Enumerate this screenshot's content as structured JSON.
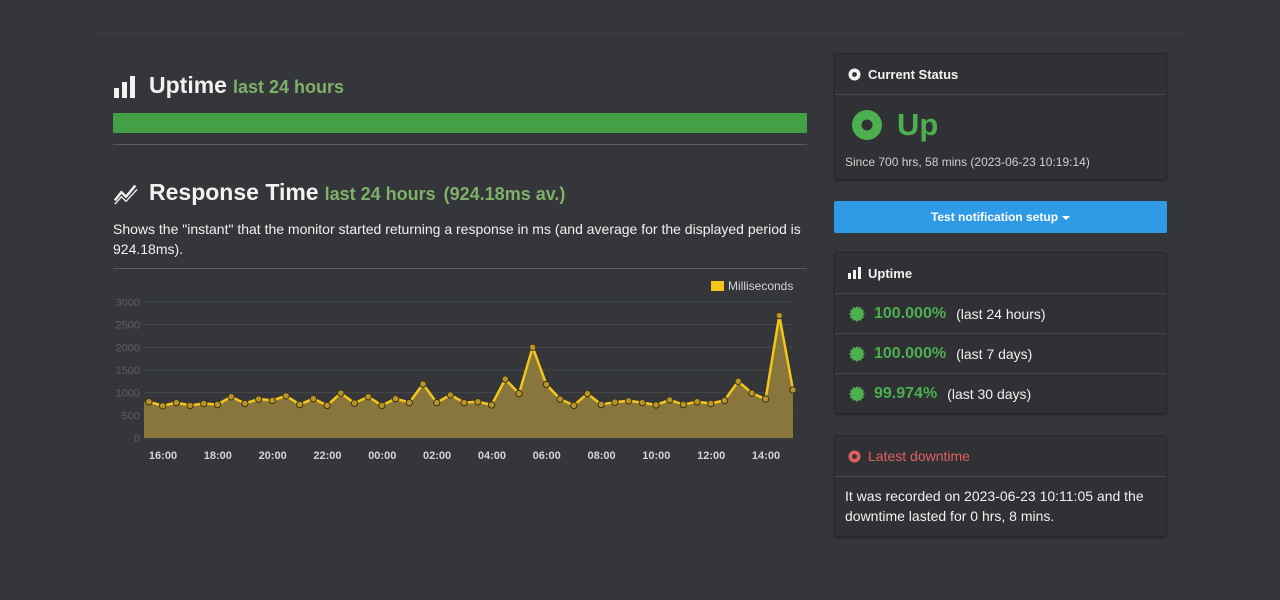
{
  "uptime_section": {
    "title": "Uptime",
    "subtitle": "last 24 hours"
  },
  "response_section": {
    "title": "Response Time",
    "subtitle": "last 24 hours",
    "average": "(924.18ms av.)",
    "description": "Shows the \"instant\" that the monitor started returning a response in ms (and average for the displayed period is 924.18ms)."
  },
  "chart_data": {
    "type": "area",
    "title": "",
    "xlabel": "",
    "ylabel": "",
    "legend": {
      "label": "Milliseconds",
      "placement": "top-right"
    },
    "ylim": [
      0,
      3000
    ],
    "y_ticks": [
      "0",
      "500",
      "1000",
      "1500",
      "2000",
      "2500",
      "3000"
    ],
    "x_tick_labels": [
      "16:00",
      "18:00",
      "20:00",
      "22:00",
      "00:00",
      "02:00",
      "04:00",
      "06:00",
      "08:00",
      "10:00",
      "12:00",
      "14:00"
    ],
    "color": "#f5c518",
    "series": [
      {
        "name": "Milliseconds",
        "values": [
          800,
          710,
          780,
          720,
          760,
          740,
          910,
          760,
          860,
          830,
          930,
          740,
          870,
          720,
          990,
          770,
          910,
          720,
          870,
          780,
          1190,
          780,
          950,
          780,
          800,
          730,
          1300,
          980,
          2000,
          1180,
          860,
          720,
          980,
          740,
          790,
          820,
          780,
          730,
          840,
          740,
          800,
          760,
          830,
          1250,
          990,
          860,
          2700,
          1060
        ]
      }
    ]
  },
  "current_status": {
    "heading": "Current Status",
    "status": "Up",
    "since": "Since 700 hrs, 58 mins (2023-06-23 10:19:14)"
  },
  "notify_button": {
    "label": "Test notification setup"
  },
  "uptime_panel": {
    "heading": "Uptime",
    "rows": [
      {
        "pct": "100.000%",
        "period": "(last 24 hours)"
      },
      {
        "pct": "100.000%",
        "period": "(last 7 days)"
      },
      {
        "pct": "99.974%",
        "period": "(last 30 days)"
      }
    ]
  },
  "downtime_panel": {
    "heading": "Latest downtime",
    "text": "It was recorded on 2023-06-23 10:11:05 and the downtime lasted for 0 hrs, 8 mins."
  },
  "colors": {
    "green": "#4caf50",
    "uptime_bar": "#43a047",
    "accent_blue": "#2f9be6",
    "downtime_red": "#e06060",
    "subtitle_green": "#7fb069"
  }
}
